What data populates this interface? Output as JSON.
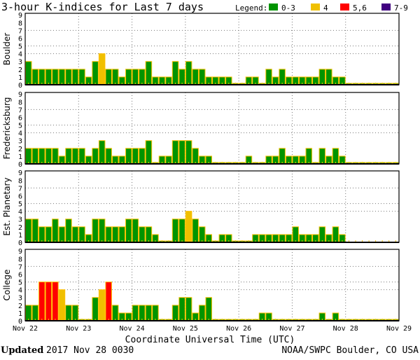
{
  "chart_data": {
    "type": "bar",
    "title": "3-hour K-indices for Last 7 days",
    "xlabel": "Coordinate Universal Time (UTC)",
    "x_ticks": [
      "Nov 22",
      "Nov 23",
      "Nov 24",
      "Nov 25",
      "Nov 26",
      "Nov 27",
      "Nov 28",
      "Nov 29"
    ],
    "y_ticks": [
      "0",
      "1",
      "2",
      "3",
      "4",
      "5",
      "6",
      "7",
      "8",
      "9"
    ],
    "ylim": [
      0,
      9
    ],
    "grid": {
      "horizontal_dotted_at": [
        4,
        5,
        7
      ],
      "vertical_dotted_at_day_boundaries": true
    },
    "interval_hours": 3,
    "legend": {
      "label": "Legend:",
      "placement": "top-right",
      "items": [
        {
          "label": "0-3",
          "color": "#009400"
        },
        {
          "label": "4",
          "color": "#f0c000"
        },
        {
          "label": "5,6",
          "color": "#ff0000"
        },
        {
          "label": "7-9",
          "color": "#400080"
        }
      ]
    },
    "bar_outline_color": "#ffc000",
    "series": [
      {
        "name": "Boulder",
        "values": [
          3,
          2,
          2,
          2,
          2,
          2,
          2,
          2,
          2,
          1,
          3,
          4,
          2,
          2,
          1,
          2,
          2,
          2,
          3,
          1,
          1,
          1,
          3,
          2,
          3,
          2,
          2,
          1,
          1,
          1,
          1,
          0,
          0,
          1,
          1,
          0,
          2,
          1,
          2,
          1,
          1,
          1,
          1,
          1,
          2,
          2,
          1,
          1,
          0,
          0,
          0,
          0,
          0,
          0,
          0,
          0
        ]
      },
      {
        "name": "Fredericksburg",
        "values": [
          2,
          2,
          2,
          2,
          2,
          1,
          2,
          2,
          2,
          1,
          2,
          3,
          2,
          1,
          1,
          2,
          2,
          2,
          3,
          0,
          1,
          1,
          3,
          3,
          3,
          2,
          1,
          1,
          0,
          0,
          0,
          0,
          0,
          1,
          0,
          0,
          1,
          1,
          2,
          1,
          1,
          1,
          2,
          0,
          2,
          1,
          2,
          1,
          0,
          0,
          0,
          0,
          0,
          0,
          0,
          0
        ]
      },
      {
        "name": "Est. Planetary",
        "values": [
          3,
          3,
          2,
          2,
          3,
          2,
          3,
          2,
          2,
          1,
          3,
          3,
          2,
          2,
          2,
          3,
          3,
          2,
          2,
          1,
          0,
          0,
          3,
          3,
          4,
          3,
          2,
          1,
          0,
          1,
          1,
          0,
          0,
          0,
          1,
          1,
          1,
          1,
          1,
          1,
          2,
          1,
          1,
          1,
          2,
          1,
          2,
          1,
          null,
          null,
          null,
          null,
          null,
          null,
          null,
          null
        ]
      },
      {
        "name": "College",
        "values": [
          2,
          2,
          5,
          5,
          5,
          4,
          2,
          2,
          0,
          0,
          3,
          4,
          5,
          2,
          1,
          1,
          2,
          2,
          2,
          2,
          0,
          0,
          2,
          3,
          3,
          1,
          2,
          3,
          0,
          0,
          0,
          0,
          0,
          0,
          0,
          1,
          1,
          0,
          0,
          0,
          0,
          0,
          0,
          0,
          1,
          0,
          1,
          0,
          0,
          0,
          0,
          0,
          0,
          0,
          0,
          0
        ]
      }
    ]
  },
  "footer": {
    "updated_label": "Updated",
    "updated_value": "2017 Nov 28 0030",
    "credit": "NOAA/SWPC Boulder, CO USA"
  }
}
